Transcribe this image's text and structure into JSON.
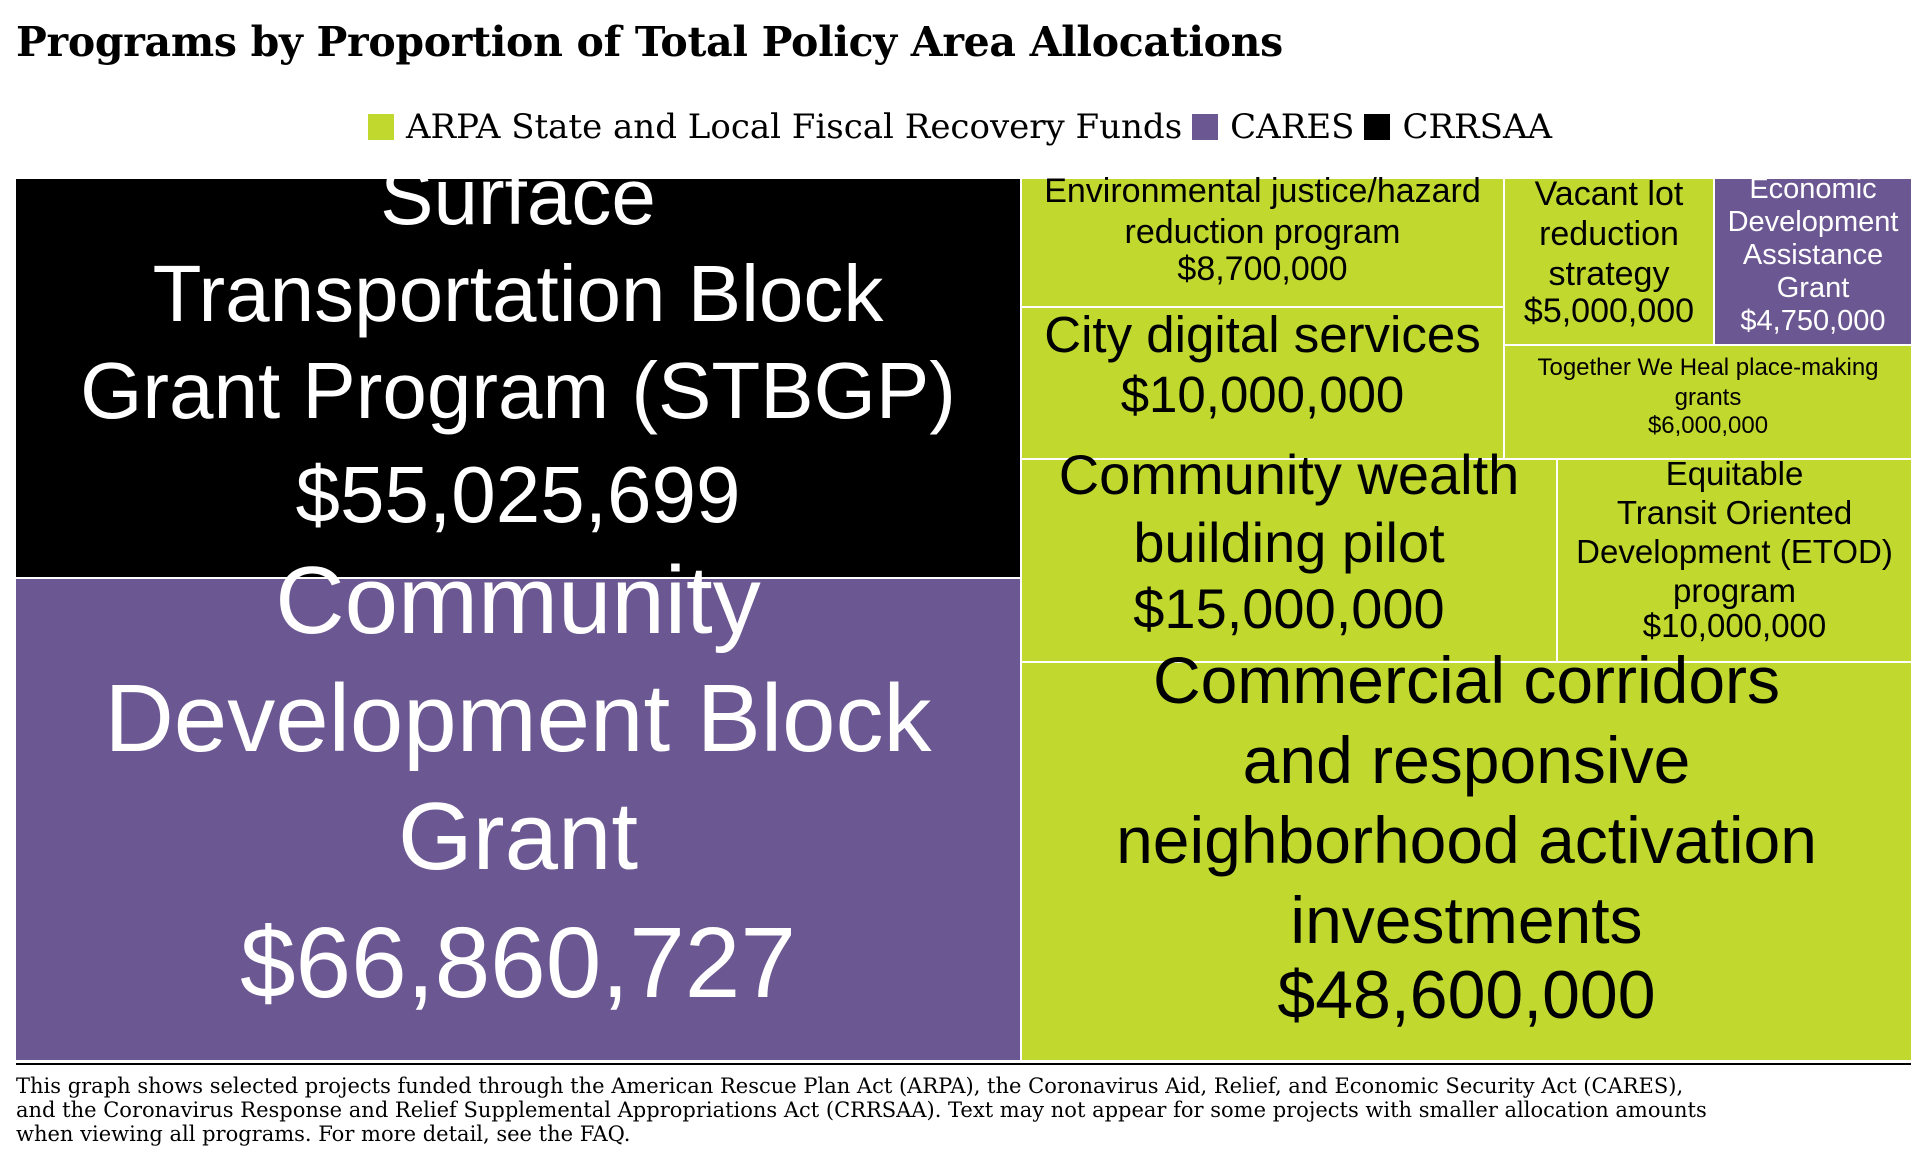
{
  "title": "Programs by Proportion of Total Policy Area Allocations",
  "legend": [
    {
      "label": "ARPA State and Local Fiscal Recovery Funds",
      "color": "#c1d82f"
    },
    {
      "label": "CARES",
      "color": "#6b5791"
    },
    {
      "label": "CRRSAA",
      "color": "#000000"
    }
  ],
  "footnote": "This graph shows selected projects funded through the American Rescue Plan Act (ARPA), the Coronavirus Aid, Relief, and Economic Security Act (CARES),\nand the Coronavirus Response and Relief Supplemental Appropriations Act (CRRSAA). Text may not appear for some projects with smaller allocation amounts\n when viewing all programs. For more detail, see the FAQ.",
  "chart_data": {
    "type": "treemap",
    "title": "Programs by Proportion of Total Policy Area Allocations",
    "items": [
      {
        "name": "Surface Transportation Block Grant Program (STBGP)",
        "value_label": "$55,025,699",
        "value": 55025699,
        "fund": "CRRSAA"
      },
      {
        "name": "Community Development Block Grant",
        "value_label": "$66,860,727",
        "value": 66860727,
        "fund": "CARES"
      },
      {
        "name": "Environmental justice/hazard reduction program",
        "value_label": "$8,700,000",
        "value": 8700000,
        "fund": "ARPA State and Local Fiscal Recovery Funds"
      },
      {
        "name": "Vacant lot reduction strategy",
        "value_label": "$5,000,000",
        "value": 5000000,
        "fund": "ARPA State and Local Fiscal Recovery Funds"
      },
      {
        "name": "Economic Development Assistance Grant",
        "value_label": "$4,750,000",
        "value": 4750000,
        "fund": "CARES"
      },
      {
        "name": "City digital services",
        "value_label": "$10,000,000",
        "value": 10000000,
        "fund": "ARPA State and Local Fiscal Recovery Funds"
      },
      {
        "name": "Together We Heal place-making grants",
        "value_label": "$6,000,000",
        "value": 6000000,
        "fund": "ARPA State and Local Fiscal Recovery Funds"
      },
      {
        "name": "Community wealth building pilot",
        "value_label": "$15,000,000",
        "value": 15000000,
        "fund": "ARPA State and Local Fiscal Recovery Funds"
      },
      {
        "name": "Equitable Transit Oriented Development (ETOD) program",
        "value_label": "$10,000,000",
        "value": 10000000,
        "fund": "ARPA State and Local Fiscal Recovery Funds"
      },
      {
        "name": "Commercial corridors and responsive neighborhood activation investments",
        "value_label": "$48,600,000",
        "value": 48600000,
        "fund": "ARPA State and Local Fiscal Recovery Funds"
      }
    ]
  }
}
